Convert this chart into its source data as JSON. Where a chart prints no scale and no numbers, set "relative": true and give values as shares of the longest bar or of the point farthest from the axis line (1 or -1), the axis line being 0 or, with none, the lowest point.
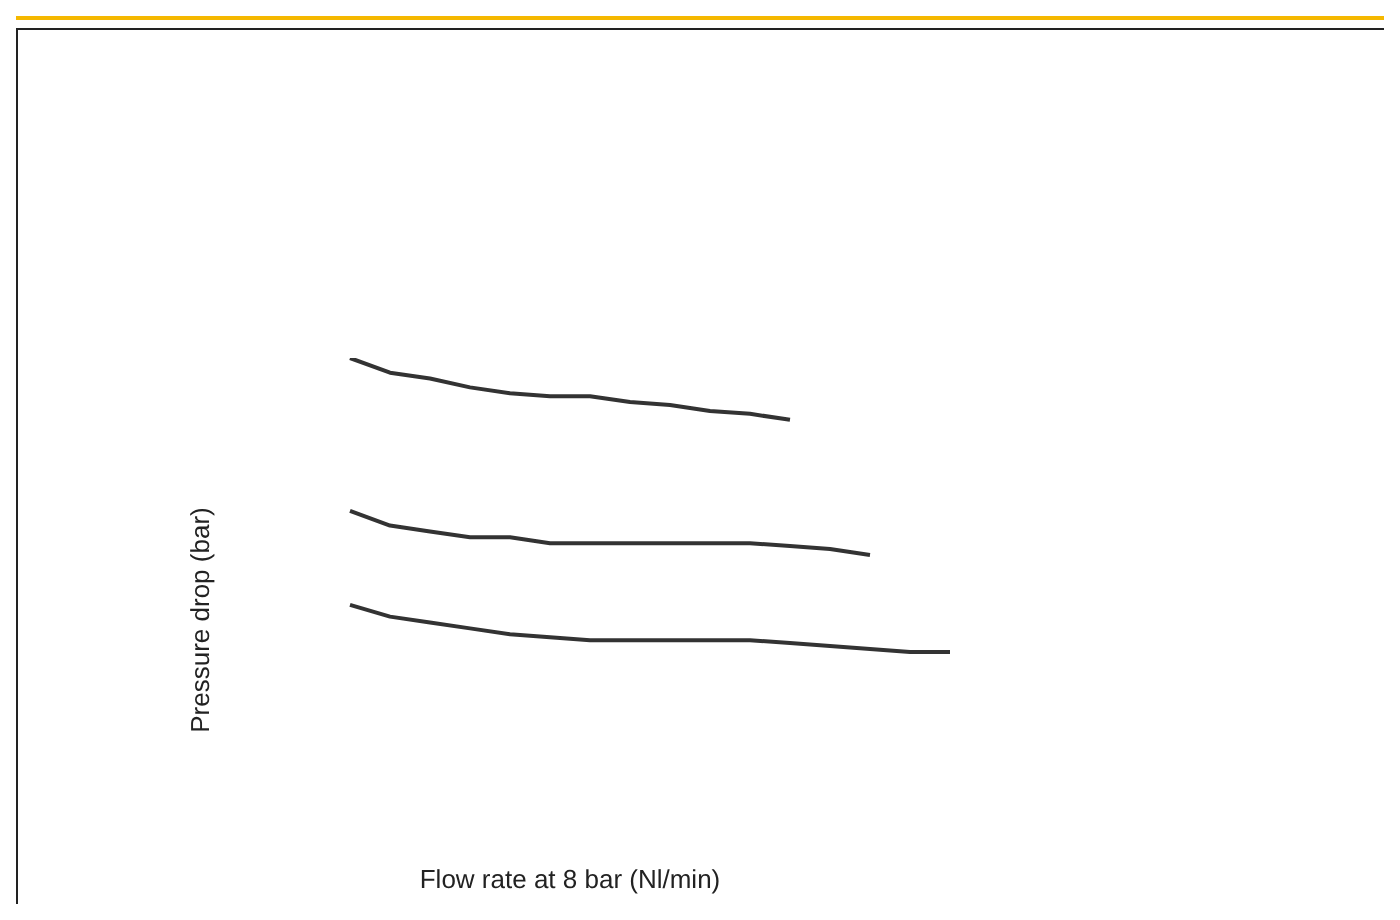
{
  "chart_data": {
    "type": "line",
    "annotations": [
      "Flow rate at 8 bar (Nl/min)"
    ],
    "ylabel": "Pressure drop (bar)",
    "relative": true,
    "marker": "none",
    "categories": [
      null,
      null,
      null,
      null,
      null,
      null,
      null,
      null,
      null,
      null,
      null,
      null,
      null,
      null,
      null,
      null,
      null,
      null,
      null,
      null,
      null,
      null,
      null,
      null,
      null,
      null,
      null
    ],
    "series": [
      {
        "color": "#333333",
        "values": [
          1,
          0.95,
          0.93,
          0.9,
          0.88,
          0.87,
          0.87,
          0.85,
          0.84,
          0.82,
          0.81,
          0.79,
          null,
          null,
          null,
          null,
          null,
          null,
          null,
          null,
          null,
          null,
          null,
          null,
          null,
          null,
          null
        ]
      },
      {
        "color": "#333333",
        "values": [
          0.48,
          0.43,
          0.41,
          0.39,
          0.39,
          0.37,
          0.37,
          0.37,
          0.37,
          0.37,
          0.37,
          0.36,
          0.35,
          0.33,
          null,
          null,
          null,
          null,
          null,
          null,
          null,
          null,
          null,
          null,
          null,
          null,
          null
        ]
      },
      {
        "color": "#333333",
        "values": [
          0.16,
          0.12,
          0.1,
          0.08,
          0.06,
          0.05,
          0.04,
          0.04,
          0.04,
          0.04,
          0.04,
          0.03,
          0.02,
          0.01,
          0,
          0,
          null,
          null,
          null,
          null,
          null,
          null,
          null,
          null,
          null,
          null,
          null
        ]
      }
    ]
  }
}
